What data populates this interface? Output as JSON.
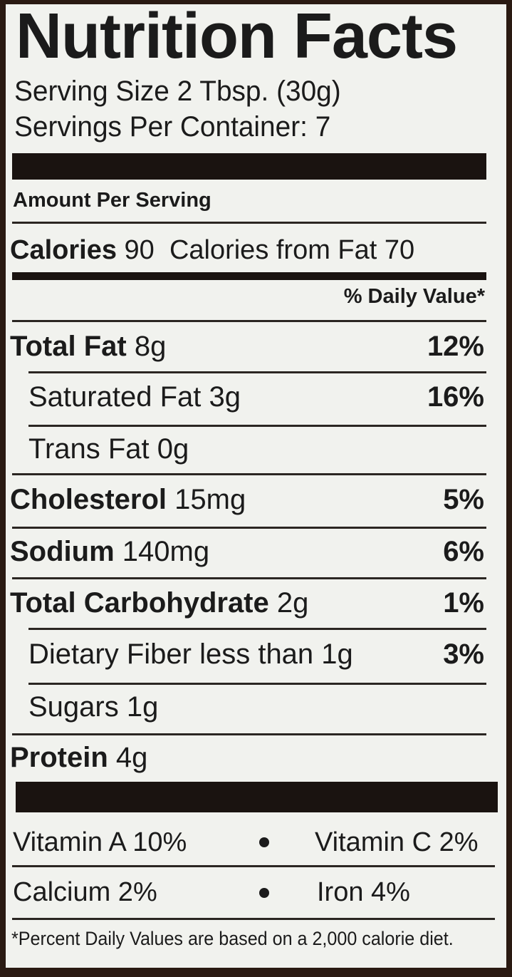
{
  "title": "Nutrition Facts",
  "serving_size": "Serving Size 2 Tbsp. (30g)",
  "servings_per_container": "Servings Per Container: 7",
  "amount_per_serving": "Amount Per Serving",
  "calories": {
    "label": "Calories",
    "value": "90",
    "from_fat": "Calories from Fat 70"
  },
  "daily_value_header": "% Daily Value*",
  "nutrients": [
    {
      "label": "Total Fat",
      "amount": "8g",
      "dv": "12%"
    },
    {
      "label": "Saturated Fat",
      "amount": "3g",
      "dv": "16%"
    },
    {
      "label": "Trans Fat",
      "amount": "0g",
      "dv": ""
    },
    {
      "label": "Cholesterol",
      "amount": "15mg",
      "dv": "5%"
    },
    {
      "label": "Sodium",
      "amount": "140mg",
      "dv": "6%"
    },
    {
      "label": "Total Carbohydrate",
      "amount": "2g",
      "dv": "1%"
    },
    {
      "label": "Dietary Fiber",
      "amount": "less than 1g",
      "dv": "3%"
    },
    {
      "label": "Sugars",
      "amount": "1g",
      "dv": ""
    },
    {
      "label": "Protein",
      "amount": "4g",
      "dv": ""
    }
  ],
  "vitamins": [
    {
      "left": "Vitamin A 10%",
      "right": "Vitamin C 2%"
    },
    {
      "left": "Calcium 2%",
      "right": "Iron 4%"
    }
  ],
  "footnote": "*Percent Daily Values are based on a 2,000 calorie diet."
}
